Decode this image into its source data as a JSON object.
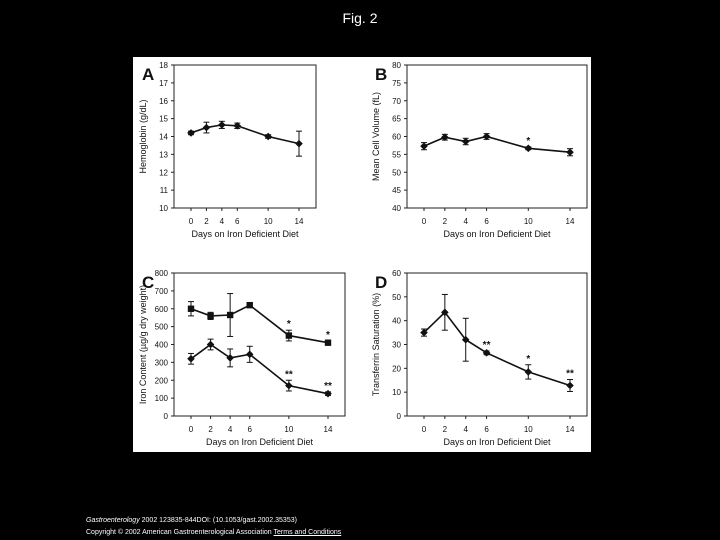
{
  "page": {
    "title": "Fig. 2"
  },
  "footer": {
    "journal": "Gastroenterology",
    "citation": " 2002 123835-844DOI: (10.1053/gast.2002.35353)",
    "copyright": "Copyright © 2002 American Gastroenterological Association",
    "terms_link": "Terms and Conditions"
  },
  "chart_data": [
    {
      "panel": "A",
      "type": "line",
      "ylabel": "Hemoglobin (g/dL)",
      "xlabel": "Days on Iron Deficient Diet",
      "x": [
        0,
        2,
        4,
        6,
        10,
        14
      ],
      "xticks": [
        "0",
        "2",
        "4",
        "6",
        "10",
        "14"
      ],
      "ylim": [
        10,
        18
      ],
      "yticks": [
        "10",
        "11",
        "12",
        "13",
        "14",
        "15",
        "16",
        "17",
        "18"
      ],
      "series": [
        {
          "name": "Hemoglobin",
          "marker": "diamond",
          "values": [
            14.2,
            14.5,
            14.65,
            14.6,
            14.0,
            13.6
          ],
          "errors": [
            0.1,
            0.3,
            0.2,
            0.15,
            0.1,
            0.7
          ],
          "stars": [
            "",
            "",
            "",
            "",
            "",
            ""
          ]
        }
      ]
    },
    {
      "panel": "B",
      "type": "line",
      "ylabel": "Mean Cell Volume (fL)",
      "xlabel": "Days on Iron Deficient Diet",
      "x": [
        0,
        2,
        4,
        6,
        10,
        14
      ],
      "xticks": [
        "0",
        "2",
        "4",
        "6",
        "10",
        "14"
      ],
      "ylim": [
        40,
        80
      ],
      "yticks": [
        "40",
        "45",
        "50",
        "55",
        "60",
        "65",
        "70",
        "75",
        "80"
      ],
      "series": [
        {
          "name": "MCV",
          "marker": "diamond",
          "values": [
            57.3,
            59.8,
            58.6,
            60.0,
            56.7,
            55.6
          ],
          "errors": [
            1.0,
            0.8,
            0.9,
            0.8,
            0.4,
            1.0
          ],
          "stars": [
            "",
            "",
            "",
            "",
            "*",
            ""
          ]
        }
      ]
    },
    {
      "panel": "C",
      "type": "line",
      "ylabel": "Iron Content (µg/g dry weight)",
      "xlabel": "Days on Iron Deficient Diet",
      "x": [
        0,
        2,
        4,
        6,
        10,
        14
      ],
      "xticks": [
        "0",
        "2",
        "4",
        "6",
        "10",
        "14"
      ],
      "ylim": [
        0,
        800
      ],
      "yticks": [
        "0",
        "100",
        "200",
        "300",
        "400",
        "500",
        "600",
        "700",
        "800"
      ],
      "series": [
        {
          "name": "Series 1 (squares)",
          "marker": "square",
          "values": [
            600,
            560,
            565,
            620,
            450,
            410
          ],
          "errors": [
            40,
            20,
            120,
            10,
            30,
            10
          ],
          "stars": [
            "",
            "",
            "",
            "",
            "*",
            "*"
          ]
        },
        {
          "name": "Series 2 (diamonds)",
          "marker": "diamond",
          "values": [
            320,
            400,
            325,
            345,
            170,
            125
          ],
          "errors": [
            30,
            30,
            50,
            45,
            30,
            10
          ],
          "stars": [
            "",
            "",
            "",
            "",
            "**",
            "**"
          ]
        }
      ]
    },
    {
      "panel": "D",
      "type": "line",
      "ylabel": "Transferrin Saturation (%)",
      "xlabel": "Days on Iron Deficient Diet",
      "x": [
        0,
        2,
        4,
        6,
        10,
        14
      ],
      "xticks": [
        "0",
        "2",
        "4",
        "6",
        "10",
        "14"
      ],
      "ylim": [
        0,
        60
      ],
      "yticks": [
        "0",
        "10",
        "20",
        "30",
        "40",
        "50",
        "60"
      ],
      "series": [
        {
          "name": "Transferrin saturation",
          "marker": "diamond",
          "values": [
            35,
            43.5,
            32,
            26.5,
            18.5,
            12.8
          ],
          "errors": [
            1.5,
            7.5,
            9,
            0.8,
            3,
            2.5
          ],
          "stars": [
            "",
            "",
            "",
            "**",
            "*",
            "**"
          ]
        }
      ]
    }
  ]
}
